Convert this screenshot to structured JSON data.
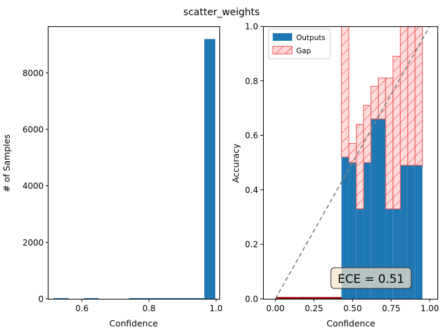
{
  "figure_title": "scatter_weights",
  "colors": {
    "bar_blue": "#1f77b4",
    "gap_fill": "#ffd6d6",
    "gap_edge": "#ee5555",
    "diag": "#7f7f7f",
    "ece_box": "#f5e6c8"
  },
  "chart_data": [
    {
      "type": "bar",
      "name": "histogram",
      "xlabel": "Confidence",
      "ylabel": "# of Samples",
      "xlim": [
        0.5,
        1.01
      ],
      "ylim": [
        0,
        9650
      ],
      "xticks": [
        0.6,
        0.8,
        1.0
      ],
      "xtick_labels": [
        "0.6",
        "0.8",
        "1.0"
      ],
      "yticks": [
        0,
        2000,
        4000,
        6000,
        8000
      ],
      "ytick_labels": [
        "0",
        "2000",
        "4000",
        "6000",
        "8000"
      ],
      "bins": [
        {
          "x0": 0.515,
          "x1": 0.56,
          "value": 15
        },
        {
          "x0": 0.56,
          "x1": 0.605,
          "value": 0
        },
        {
          "x0": 0.605,
          "x1": 0.65,
          "value": 12
        },
        {
          "x0": 0.65,
          "x1": 0.695,
          "value": 0
        },
        {
          "x0": 0.695,
          "x1": 0.74,
          "value": 0
        },
        {
          "x0": 0.74,
          "x1": 0.785,
          "value": 6
        },
        {
          "x0": 0.785,
          "x1": 0.83,
          "value": 10
        },
        {
          "x0": 0.83,
          "x1": 0.875,
          "value": 8
        },
        {
          "x0": 0.875,
          "x1": 0.92,
          "value": 10
        },
        {
          "x0": 0.92,
          "x1": 0.965,
          "value": 12
        },
        {
          "x0": 0.965,
          "x1": 0.9975,
          "value": 9200
        }
      ],
      "grid": false
    },
    {
      "type": "bar",
      "name": "reliability_diagram",
      "xlabel": "Confidence",
      "ylabel": "Accuracy",
      "xlim": [
        -0.08,
        1.05
      ],
      "ylim": [
        0,
        1.0
      ],
      "xticks": [
        0.0,
        0.25,
        0.5,
        0.75,
        1.0
      ],
      "xtick_labels": [
        "0.00",
        "0.25",
        "0.50",
        "0.75",
        "1.00"
      ],
      "yticks": [
        0.0,
        0.2,
        0.4,
        0.6,
        0.8,
        1.0
      ],
      "ytick_labels": [
        "0.0",
        "0.2",
        "0.4",
        "0.6",
        "0.8",
        "1.0"
      ],
      "bin_width": 0.0476,
      "bin_centers": [
        0.024,
        0.071,
        0.119,
        0.167,
        0.214,
        0.262,
        0.31,
        0.357,
        0.405,
        0.452,
        0.5,
        0.548,
        0.595,
        0.643,
        0.69,
        0.738,
        0.786,
        0.833,
        0.881,
        0.929
      ],
      "series": [
        {
          "name": "Outputs",
          "values": [
            0,
            0,
            0,
            0,
            0,
            0,
            0,
            0,
            0,
            0.52,
            0.5,
            0.33,
            0.5,
            0.66,
            0.66,
            0.33,
            0.33,
            0.49,
            0.49,
            0.49
          ]
        },
        {
          "name": "Gap",
          "values": [
            0,
            0,
            0,
            0,
            0,
            0,
            0,
            0,
            0,
            0.48,
            0.07,
            0.31,
            0.21,
            0.12,
            0.15,
            0.48,
            0.56,
            0.51,
            0.51,
            0.51
          ]
        }
      ],
      "series_note_conf": [
        0,
        0,
        0,
        0,
        0,
        0,
        0,
        0,
        0,
        1.0,
        0.57,
        0.64,
        0.71,
        0.78,
        0.81,
        0.81,
        0.89,
        1.0,
        1.0,
        1.0
      ],
      "legend": {
        "placement": "top-left",
        "entries": [
          "Outputs",
          "Gap"
        ]
      },
      "annotation": "ECE = 0.51",
      "grid": false
    }
  ]
}
